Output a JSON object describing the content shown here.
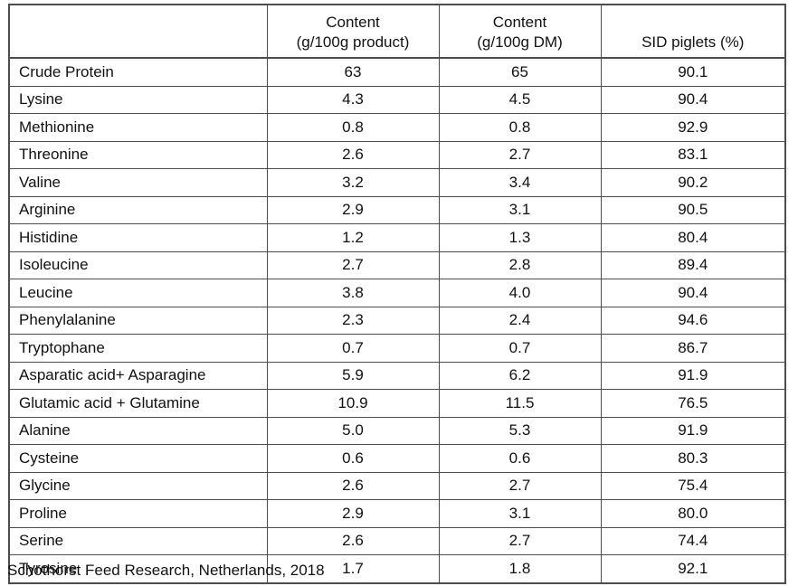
{
  "table": {
    "header": {
      "label_col": "",
      "content_product_line1": "Content",
      "content_product_line2": "(g/100g product)",
      "content_dm_line1": "Content",
      "content_dm_line2": "(g/100g DM)",
      "sid_piglets": "SID piglets (%)"
    },
    "rows": [
      {
        "name": "Crude Protein",
        "content_product": "63",
        "content_dm": "65",
        "sid_piglets": "90.1"
      },
      {
        "name": "Lysine",
        "content_product": "4.3",
        "content_dm": "4.5",
        "sid_piglets": "90.4"
      },
      {
        "name": "Methionine",
        "content_product": "0.8",
        "content_dm": "0.8",
        "sid_piglets": "92.9"
      },
      {
        "name": "Threonine",
        "content_product": "2.6",
        "content_dm": "2.7",
        "sid_piglets": "83.1"
      },
      {
        "name": "Valine",
        "content_product": "3.2",
        "content_dm": "3.4",
        "sid_piglets": "90.2"
      },
      {
        "name": "Arginine",
        "content_product": "2.9",
        "content_dm": "3.1",
        "sid_piglets": "90.5"
      },
      {
        "name": "Histidine",
        "content_product": "1.2",
        "content_dm": "1.3",
        "sid_piglets": "80.4"
      },
      {
        "name": "Isoleucine",
        "content_product": "2.7",
        "content_dm": "2.8",
        "sid_piglets": "89.4"
      },
      {
        "name": "Leucine",
        "content_product": "3.8",
        "content_dm": "4.0",
        "sid_piglets": "90.4"
      },
      {
        "name": "Phenylalanine",
        "content_product": "2.3",
        "content_dm": "2.4",
        "sid_piglets": "94.6"
      },
      {
        "name": "Tryptophane",
        "content_product": "0.7",
        "content_dm": "0.7",
        "sid_piglets": "86.7"
      },
      {
        "name": "Asparatic acid+ Asparagine",
        "content_product": "5.9",
        "content_dm": "6.2",
        "sid_piglets": "91.9"
      },
      {
        "name": "Glutamic acid + Glutamine",
        "content_product": "10.9",
        "content_dm": "11.5",
        "sid_piglets": "76.5"
      },
      {
        "name": "Alanine",
        "content_product": "5.0",
        "content_dm": "5.3",
        "sid_piglets": "91.9"
      },
      {
        "name": "Cysteine",
        "content_product": "0.6",
        "content_dm": "0.6",
        "sid_piglets": "80.3"
      },
      {
        "name": "Glycine",
        "content_product": "2.6",
        "content_dm": "2.7",
        "sid_piglets": "75.4"
      },
      {
        "name": "Proline",
        "content_product": "2.9",
        "content_dm": "3.1",
        "sid_piglets": "80.0"
      },
      {
        "name": "Serine",
        "content_product": "2.6",
        "content_dm": "2.7",
        "sid_piglets": "74.4"
      },
      {
        "name": "Tyrosine",
        "content_product": "1.7",
        "content_dm": "1.8",
        "sid_piglets": "92.1"
      }
    ]
  },
  "footer": {
    "source": "Schothorst Feed Research, Netherlands, 2018"
  },
  "colors": {
    "border": "#4d4d4d",
    "text": "#111111",
    "background": "#ffffff"
  }
}
